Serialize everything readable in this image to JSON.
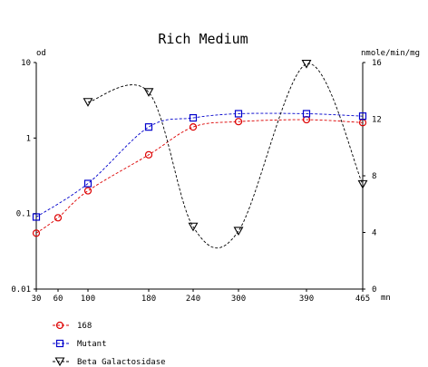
{
  "chart_data": {
    "type": "line",
    "title": "Rich Medium",
    "x": [
      30,
      60,
      100,
      180,
      240,
      300,
      390,
      465
    ],
    "x_tick_labels": [
      "30",
      "60",
      "100",
      "180",
      "240",
      "300",
      "390",
      "465"
    ],
    "x_unit_label": "mn",
    "xlim": [
      30,
      465
    ],
    "y_left": {
      "label": "od",
      "scale": "log",
      "range": [
        0.01,
        10
      ],
      "tick_labels": [
        "10",
        "1",
        "0.1",
        "0.01"
      ],
      "tick_values": [
        10,
        1,
        0.1,
        0.01
      ]
    },
    "y_right": {
      "label": "nmole/min/mg",
      "scale": "linear",
      "range": [
        0,
        16
      ],
      "tick_labels": [
        "16",
        "12",
        "8",
        "4",
        "0"
      ],
      "tick_values": [
        16,
        12,
        8,
        4,
        0
      ]
    },
    "grid": false,
    "legend_position": "bottom-left",
    "series": [
      {
        "name": "168",
        "axis": "left",
        "color": "#dd0000",
        "marker": "circle",
        "line": "dashed",
        "points": [
          [
            30,
            0.055
          ],
          [
            60,
            0.088
          ],
          [
            100,
            0.2
          ],
          [
            180,
            0.6
          ],
          [
            240,
            1.4
          ],
          [
            300,
            1.65
          ],
          [
            390,
            1.75
          ],
          [
            465,
            1.6
          ]
        ]
      },
      {
        "name": "Mutant",
        "axis": "left",
        "color": "#0000cc",
        "marker": "square",
        "line": "dashed",
        "points": [
          [
            30,
            0.09
          ],
          [
            100,
            0.25
          ],
          [
            180,
            1.4
          ],
          [
            240,
            1.85
          ],
          [
            300,
            2.1
          ],
          [
            390,
            2.1
          ],
          [
            465,
            1.95
          ]
        ]
      },
      {
        "name": "Beta Galactosidase",
        "axis": "right",
        "color": "#000000",
        "marker": "triangle-down",
        "line": "dashed",
        "points": [
          [
            100,
            13.2
          ],
          [
            180,
            13.9
          ],
          [
            240,
            4.4
          ],
          [
            300,
            4.1
          ],
          [
            390,
            15.9
          ],
          [
            465,
            7.4
          ]
        ]
      }
    ]
  }
}
